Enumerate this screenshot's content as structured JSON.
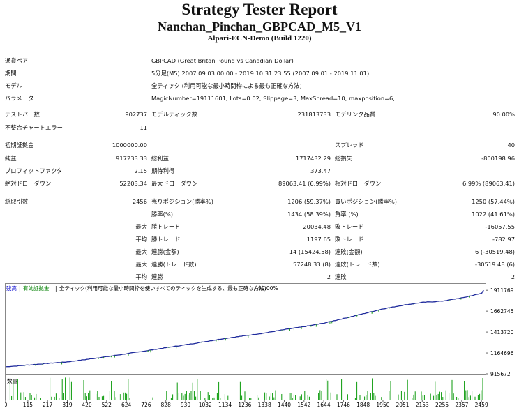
{
  "header": {
    "title": "Strategy Tester Report",
    "ea_name": "Nanchan_Pinchan_GBPCAD_M5_V1",
    "server": "Alpari-ECN-Demo (Build 1220)"
  },
  "info": {
    "symbol_label": "通貨ペア",
    "symbol": "GBPCAD (Great Britan Pound vs Canadian Dollar)",
    "period_label": "期間",
    "period": "5分足(M5) 2007.09.03 00:00 - 2019.10.31 23:55 (2007.09.01 - 2019.11.01)",
    "model_label": "モデル",
    "model": "全ティック (利用可能な最小時間枠による最も正確な方法)",
    "params_label": "パラメーター",
    "params": "MagicNumber=19111601; Lots=0.02; Slippage=3; MaxSpread=10; maxposition=6;"
  },
  "stats": {
    "bars_label": "テストバー数",
    "bars": "902737",
    "ticks_label": "モデルティック数",
    "ticks": "231813733",
    "quality_label": "モデリング品質",
    "quality": "90.00%",
    "mismatch_label": "不整合チャートエラー",
    "mismatch": "11",
    "deposit_label": "初期証拠金",
    "deposit": "1000000.00",
    "spread_label": "スプレッド",
    "spread": "40",
    "net_label": "純益",
    "net": "917233.33",
    "gross_profit_label": "総利益",
    "gross_profit": "1717432.29",
    "gross_loss_label": "総損失",
    "gross_loss": "-800198.96",
    "pf_label": "プロフィットファクタ",
    "pf": "2.15",
    "expected_label": "期待利得",
    "expected": "373.47",
    "abs_dd_label": "絶対ドローダウン",
    "abs_dd": "52203.34",
    "max_dd_label": "最大ドローダウン",
    "max_dd": "89063.41 (6.99%)",
    "rel_dd_label": "相対ドローダウン",
    "rel_dd": "6.99% (89063.41)",
    "trades_label": "総取引数",
    "trades": "2456",
    "short_label": "売りポジション(勝率%)",
    "short": "1206 (59.37%)",
    "long_label": "買いポジション(勝率%)",
    "long": "1250 (57.44%)",
    "win_pct_label": "勝率(%)",
    "win_pct": "1434 (58.39%)",
    "loss_pct_label": "負率 (%)",
    "loss_pct": "1022 (41.61%)",
    "max_word": "最大",
    "avg_word": "平均",
    "max_win_label": "勝トレード",
    "max_win": "20034.48",
    "max_loss_label": "敗トレード",
    "max_loss": "-16057.55",
    "avg_win_label": "勝トレード",
    "avg_win": "1197.65",
    "avg_loss_label": "敗トレード",
    "avg_loss": "-782.97",
    "cons_win_label": "連勝(金額)",
    "cons_win": "14 (15424.58)",
    "cons_loss_label": "連敗(金額)",
    "cons_loss": "6 (-30519.48)",
    "cons_profit_label": "連勝(トレード数)",
    "cons_profit": "57248.33 (8)",
    "cons_lossamt_label": "連敗(トレード数)",
    "cons_lossamt": "-30519.48 (6)",
    "avg_cons_win_label": "連勝",
    "avg_cons_win": "2",
    "avg_cons_loss_label": "連敗",
    "avg_cons_loss": "2"
  },
  "chart_data": {
    "type": "line",
    "legend": [
      "残高",
      "有効証拠金",
      "全ティック(利用可能な最小時間枠を使いすべてのティックを生成する、最も正確な方法)",
      "90.00%"
    ],
    "legend_colors": [
      "#0000cc",
      "#008000",
      "#000000",
      "#000000"
    ],
    "y_ticks": [
      915672,
      1164696,
      1413720,
      1662745,
      1911769
    ],
    "y_tick_labels": [
      "915672",
      "1164696",
      "1413720",
      "1662745",
      "1911769"
    ],
    "ylim": [
      915672,
      1930000
    ],
    "x_ticks": [
      0,
      115,
      217,
      319,
      420,
      522,
      624,
      726,
      828,
      930,
      1032,
      1134,
      1236,
      1338,
      1440,
      1542,
      1644,
      1746,
      1848,
      1950,
      2051,
      2153,
      2255,
      2357,
      2459
    ],
    "xlim": [
      0,
      2480
    ],
    "series": [
      {
        "name": "残高",
        "color": "#1e2a9c",
        "x": [
          0,
          115,
          217,
          319,
          420,
          522,
          624,
          726,
          828,
          930,
          1032,
          1134,
          1236,
          1338,
          1440,
          1542,
          1644,
          1746,
          1848,
          1950,
          2051,
          2153,
          2255,
          2357,
          2459,
          2470
        ],
        "y": [
          1000000,
          1020000,
          1040000,
          1058000,
          1088000,
          1120000,
          1155000,
          1190000,
          1227000,
          1262000,
          1300000,
          1338000,
          1370000,
          1402000,
          1443000,
          1478000,
          1520000,
          1575000,
          1632000,
          1690000,
          1733000,
          1767000,
          1782000,
          1820000,
          1875000,
          1911769
        ]
      }
    ],
    "volume_label": "数量",
    "volume_color": "#0a9a0a"
  }
}
